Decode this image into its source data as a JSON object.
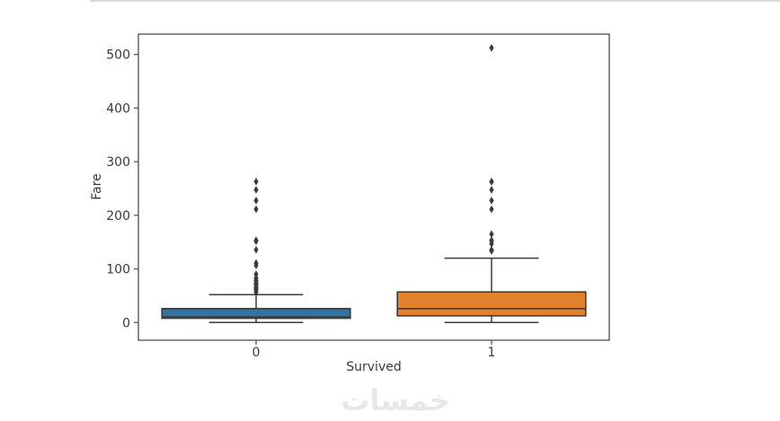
{
  "page": {
    "background": "#ffffff",
    "top_border_color": "#d9d9d9"
  },
  "watermark": {
    "text": "خمسات",
    "color": "#e7e7e7"
  },
  "chart_data": {
    "type": "box",
    "title": "",
    "xlabel": "Survived",
    "ylabel": "Fare",
    "categories": [
      "0",
      "1"
    ],
    "yticks": [
      0,
      100,
      200,
      300,
      400,
      500
    ],
    "ylim": [
      -33,
      538
    ],
    "xlim": [
      -0.5,
      1.5
    ],
    "grid": false,
    "legend": null,
    "box_width": 0.8,
    "series": [
      {
        "name": "Survived=0",
        "category": "0",
        "color": "#3274a1",
        "whisker_low": 0,
        "q1": 7.9,
        "median": 10.5,
        "q3": 26.0,
        "whisker_high": 52.0,
        "outliers": [
          56.5,
          57.0,
          61.2,
          61.4,
          63.4,
          65.0,
          66.6,
          69.6,
          71.0,
          71.3,
          73.5,
          77.3,
          78.9,
          79.2,
          83.2,
          90.0,
          106.4,
          110.9,
          135.6,
          151.6,
          153.5,
          211.3,
          227.5,
          247.5,
          263.0
        ]
      },
      {
        "name": "Survived=1",
        "category": "1",
        "color": "#e1812c",
        "whisker_low": 0,
        "q1": 12.5,
        "median": 26.0,
        "q3": 57.0,
        "whisker_high": 120.0,
        "outliers": [
          133.7,
          134.5,
          135.6,
          146.5,
          151.6,
          153.5,
          164.9,
          211.3,
          227.5,
          247.5,
          262.4,
          263.0,
          512.3
        ]
      }
    ],
    "style": {
      "edge_color": "#3b3b3b",
      "spine_color": "#5b5b5b",
      "tick_label_color": "#3a3a3a",
      "flier_marker": "thin-diamond"
    }
  }
}
